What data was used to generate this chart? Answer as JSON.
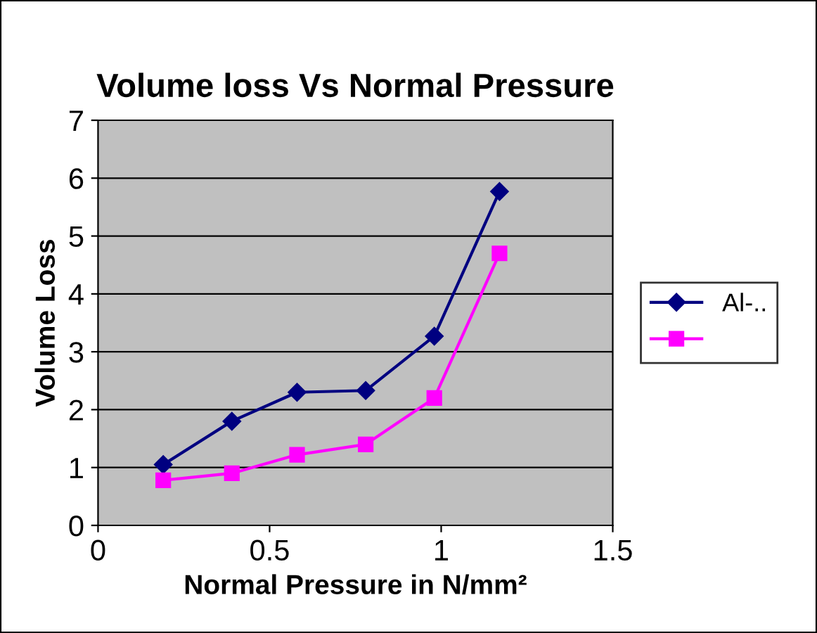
{
  "chart_data": {
    "type": "line",
    "title": "Volume loss Vs Normal Pressure",
    "xlabel": "Normal Pressure in N/mm²",
    "ylabel": "Volume Loss",
    "xlim": [
      0,
      1.5
    ],
    "xticks": [
      0,
      0.5,
      1,
      1.5
    ],
    "ylim": [
      0,
      7
    ],
    "yticks": [
      0,
      1,
      2,
      3,
      4,
      5,
      6,
      7
    ],
    "grid": "y",
    "legend": "right",
    "series": [
      {
        "name": "Al-..",
        "color": "#000080",
        "marker": "diamond",
        "x": [
          0.19,
          0.39,
          0.58,
          0.78,
          0.98,
          1.17
        ],
        "values": [
          1.05,
          1.8,
          2.3,
          2.33,
          3.27,
          5.77
        ]
      },
      {
        "color": "#ff00ff",
        "marker": "square",
        "x": [
          0.19,
          0.39,
          0.58,
          0.78,
          0.98,
          1.17
        ],
        "values": [
          0.78,
          0.9,
          1.22,
          1.4,
          2.2,
          4.7
        ]
      }
    ]
  }
}
